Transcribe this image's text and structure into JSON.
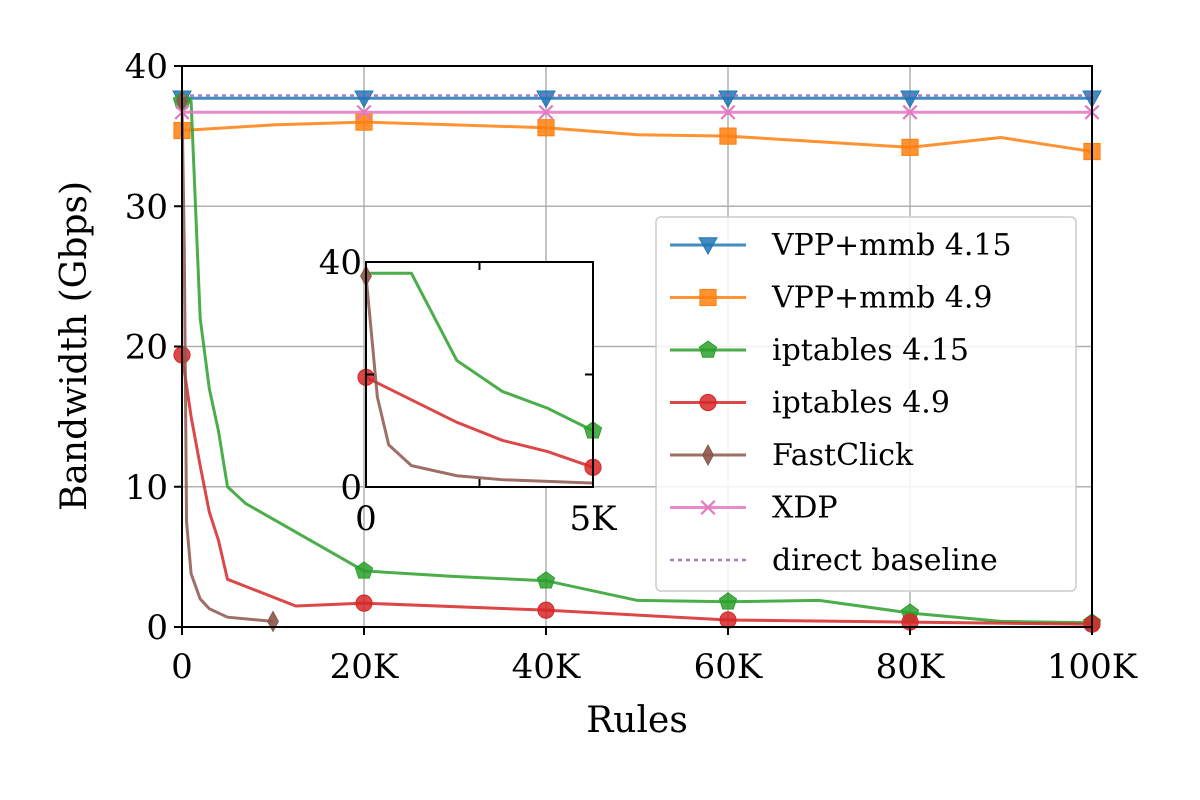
{
  "chart_data": {
    "type": "line",
    "title": "",
    "xlabel": "Rules",
    "ylabel": "Bandwidth (Gbps)",
    "xlim": [
      0,
      100000
    ],
    "ylim": [
      0,
      40
    ],
    "xticks": [
      0,
      20000,
      40000,
      60000,
      80000,
      100000
    ],
    "xtick_labels": [
      "0",
      "20K",
      "40K",
      "60K",
      "80K",
      "100K"
    ],
    "yticks": [
      0,
      10,
      20,
      30,
      40
    ],
    "ytick_labels": [
      "0",
      "10",
      "20",
      "30",
      "40"
    ],
    "grid": true,
    "legend_position": "center-right",
    "series": [
      {
        "name": "VPP+mmb 4.15",
        "color": "#1f77b4",
        "marker": "triangle-down",
        "x": [
          0,
          20000,
          40000,
          60000,
          80000,
          100000
        ],
        "y": [
          37.7,
          37.7,
          37.7,
          37.7,
          37.7,
          37.7
        ],
        "marker_x": [
          0,
          20000,
          40000,
          60000,
          80000,
          100000
        ]
      },
      {
        "name": "VPP+mmb 4.9",
        "color": "#ff7f0e",
        "marker": "square",
        "x": [
          0,
          10000,
          20000,
          30000,
          40000,
          50000,
          60000,
          70000,
          80000,
          90000,
          100000
        ],
        "y": [
          35.4,
          35.8,
          36.0,
          35.8,
          35.6,
          35.1,
          35.0,
          34.6,
          34.2,
          34.9,
          33.9
        ],
        "marker_x": [
          0,
          20000,
          40000,
          60000,
          80000,
          100000
        ]
      },
      {
        "name": "iptables 4.15",
        "color": "#2ca02c",
        "marker": "pentagon",
        "x": [
          0,
          500,
          1000,
          2000,
          3000,
          4000,
          5000,
          7000,
          10000,
          20000,
          30000,
          40000,
          50000,
          60000,
          70000,
          80000,
          90000,
          100000
        ],
        "y": [
          37.5,
          37.5,
          37.5,
          22.0,
          17.0,
          14.0,
          10.0,
          8.8,
          7.7,
          4.0,
          3.6,
          3.3,
          1.9,
          1.8,
          1.9,
          1.0,
          0.4,
          0.3
        ],
        "marker_x": [
          0,
          20000,
          40000,
          60000,
          80000,
          100000
        ]
      },
      {
        "name": "iptables 4.9",
        "color": "#d62728",
        "marker": "circle",
        "x": [
          0,
          1000,
          2000,
          3000,
          4000,
          5000,
          12500,
          20000,
          40000,
          60000,
          80000,
          100000
        ],
        "y": [
          19.4,
          15.0,
          11.5,
          8.2,
          6.2,
          3.4,
          1.5,
          1.7,
          1.2,
          0.5,
          0.35,
          0.2
        ],
        "marker_x": [
          0,
          20000,
          40000,
          60000,
          80000,
          100000
        ]
      },
      {
        "name": "FastClick",
        "color": "#8c564b",
        "marker": "thin-diamond",
        "x": [
          0,
          250,
          500,
          1000,
          2000,
          3000,
          5000,
          10000
        ],
        "y": [
          37.5,
          27.0,
          7.5,
          3.8,
          2.0,
          1.3,
          0.7,
          0.4
        ],
        "marker_x": [
          0,
          10000
        ]
      },
      {
        "name": "XDP",
        "color": "#e377c2",
        "marker": "x",
        "x": [
          0,
          20000,
          40000,
          60000,
          80000,
          100000
        ],
        "y": [
          36.7,
          36.7,
          36.7,
          36.7,
          36.7,
          36.7
        ],
        "marker_x": [
          0,
          20000,
          40000,
          60000,
          80000,
          100000
        ]
      },
      {
        "name": "direct baseline",
        "color": "#9467bd",
        "marker": "none",
        "dashed": true,
        "x": [
          0,
          100000
        ],
        "y": [
          37.9,
          37.9
        ],
        "marker_x": []
      }
    ],
    "inset": {
      "xlim": [
        0,
        5000
      ],
      "ylim": [
        0,
        40
      ],
      "xtick_labels": [
        "0",
        "5K"
      ],
      "ytick_labels": [
        "0",
        "40"
      ],
      "series": [
        {
          "name": "iptables 4.15",
          "color": "#2ca02c",
          "marker": "pentagon",
          "x": [
            0,
            1000,
            2000,
            3000,
            4000,
            5000
          ],
          "y": [
            38.0,
            38.0,
            22.5,
            17.0,
            14.0,
            10.0
          ],
          "marker_x": [
            5000
          ]
        },
        {
          "name": "iptables 4.9",
          "color": "#d62728",
          "marker": "circle",
          "x": [
            0,
            1000,
            2000,
            3000,
            4000,
            5000
          ],
          "y": [
            19.5,
            15.5,
            11.5,
            8.3,
            6.3,
            3.5
          ],
          "marker_x": [
            0,
            5000
          ]
        },
        {
          "name": "FastClick",
          "color": "#8c564b",
          "marker": "thin-diamond",
          "x": [
            0,
            100,
            250,
            500,
            1000,
            2000,
            3000,
            4000,
            5000
          ],
          "y": [
            37.5,
            29.0,
            16.0,
            7.5,
            3.8,
            2.0,
            1.3,
            1.0,
            0.7
          ],
          "marker_x": [
            0
          ]
        }
      ]
    }
  }
}
